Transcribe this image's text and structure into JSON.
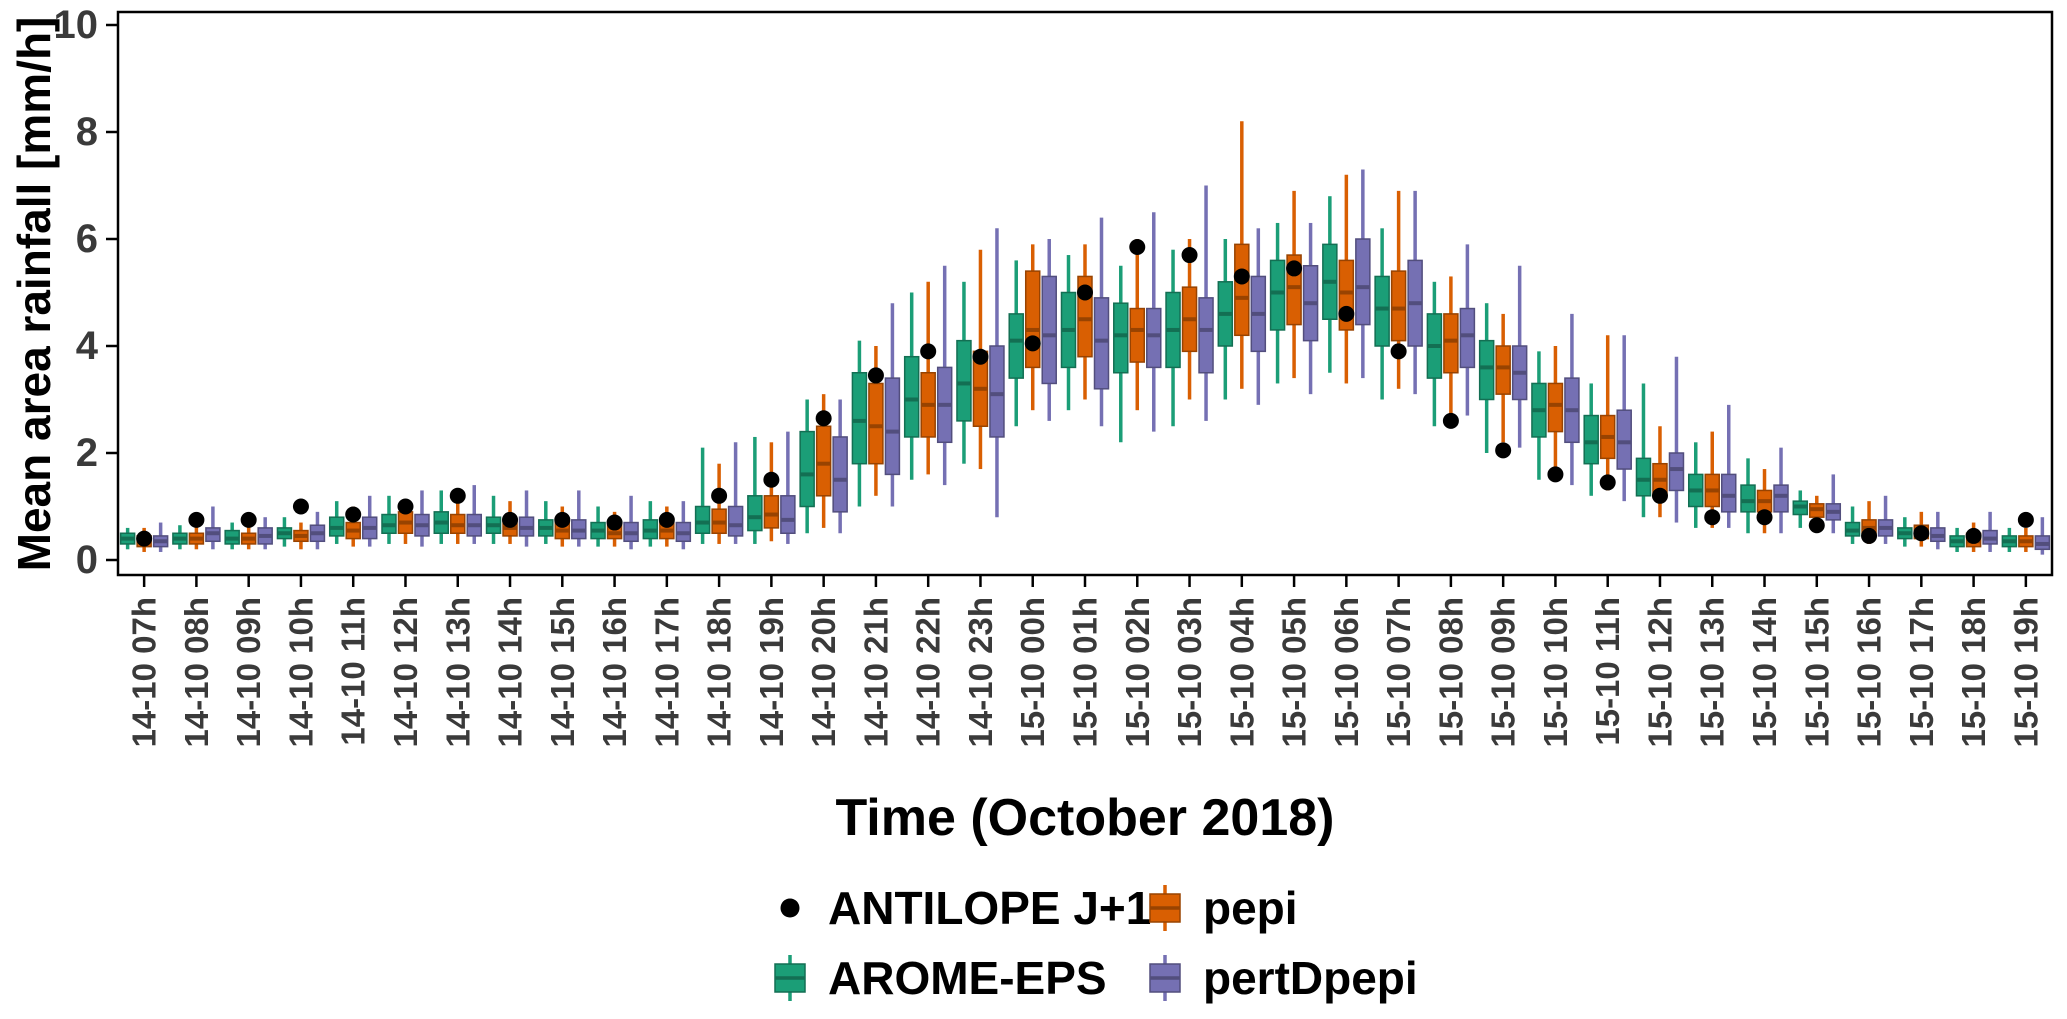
{
  "axes": {
    "y_label": "Mean area rainfall [mm/h]",
    "x_label": "Time (October 2018)",
    "y_ticks": [
      0,
      2,
      4,
      6,
      8,
      10
    ],
    "y_range": [
      0,
      10
    ]
  },
  "legend": [
    {
      "label": "ANTILOPE J+1",
      "glyph": "point",
      "color": "#000000"
    },
    {
      "label": "AROME-EPS",
      "glyph": "box",
      "color": "#1b9e77"
    },
    {
      "label": "pepi",
      "glyph": "box",
      "color": "#d95f02"
    },
    {
      "label": "pertDpepi",
      "glyph": "box",
      "color": "#7570b3"
    }
  ],
  "chart_data": {
    "type": "boxplot",
    "title": "",
    "xlabel": "Time (October 2018)",
    "ylabel": "Mean area rainfall [mm/h]",
    "ylim": [
      0,
      10
    ],
    "grid": false,
    "legend_position": "bottom",
    "categories": [
      "14-10 07h",
      "14-10 08h",
      "14-10 09h",
      "14-10 10h",
      "14-10 11h",
      "14-10 12h",
      "14-10 13h",
      "14-10 14h",
      "14-10 15h",
      "14-10 16h",
      "14-10 17h",
      "14-10 18h",
      "14-10 19h",
      "14-10 20h",
      "14-10 21h",
      "14-10 22h",
      "14-10 23h",
      "15-10 00h",
      "15-10 01h",
      "15-10 02h",
      "15-10 03h",
      "15-10 04h",
      "15-10 05h",
      "15-10 06h",
      "15-10 07h",
      "15-10 08h",
      "15-10 09h",
      "15-10 10h",
      "15-10 11h",
      "15-10 12h",
      "15-10 13h",
      "15-10 14h",
      "15-10 15h",
      "15-10 16h",
      "15-10 17h",
      "15-10 18h",
      "15-10 19h"
    ],
    "point_series": {
      "name": "ANTILOPE J+1",
      "color": "#000000",
      "values": [
        0.4,
        0.75,
        0.75,
        1.0,
        0.85,
        1.0,
        1.2,
        0.75,
        0.75,
        0.7,
        0.75,
        1.2,
        1.5,
        2.65,
        3.45,
        3.9,
        3.8,
        4.05,
        5.0,
        5.85,
        5.7,
        5.3,
        5.45,
        4.6,
        3.9,
        2.6,
        2.05,
        1.6,
        1.45,
        1.2,
        0.8,
        0.8,
        0.65,
        0.45,
        0.5,
        0.45,
        0.75
      ]
    },
    "box_format": [
      "whisker_low",
      "q1",
      "median",
      "q3",
      "whisker_high"
    ],
    "series": [
      {
        "name": "AROME-EPS",
        "color": "#1b9e77",
        "boxes": [
          [
            0.2,
            0.3,
            0.4,
            0.5,
            0.6
          ],
          [
            0.2,
            0.3,
            0.4,
            0.5,
            0.65
          ],
          [
            0.2,
            0.3,
            0.4,
            0.55,
            0.7
          ],
          [
            0.25,
            0.4,
            0.5,
            0.6,
            0.8
          ],
          [
            0.3,
            0.45,
            0.6,
            0.8,
            1.1
          ],
          [
            0.3,
            0.5,
            0.65,
            0.85,
            1.2
          ],
          [
            0.3,
            0.5,
            0.7,
            0.9,
            1.3
          ],
          [
            0.3,
            0.5,
            0.65,
            0.8,
            1.2
          ],
          [
            0.3,
            0.45,
            0.6,
            0.75,
            1.1
          ],
          [
            0.25,
            0.4,
            0.55,
            0.7,
            1.0
          ],
          [
            0.25,
            0.4,
            0.55,
            0.75,
            1.1
          ],
          [
            0.3,
            0.5,
            0.7,
            1.0,
            2.1
          ],
          [
            0.3,
            0.55,
            0.8,
            1.2,
            2.3
          ],
          [
            0.5,
            1.0,
            1.6,
            2.4,
            3.0
          ],
          [
            1.0,
            1.8,
            2.6,
            3.5,
            4.1
          ],
          [
            1.5,
            2.3,
            3.0,
            3.8,
            5.0
          ],
          [
            1.8,
            2.6,
            3.3,
            4.1,
            5.2
          ],
          [
            2.5,
            3.4,
            4.1,
            4.6,
            5.6
          ],
          [
            2.8,
            3.6,
            4.3,
            5.0,
            5.7
          ],
          [
            2.2,
            3.5,
            4.2,
            4.8,
            5.5
          ],
          [
            2.5,
            3.6,
            4.3,
            5.0,
            5.8
          ],
          [
            3.0,
            4.0,
            4.6,
            5.2,
            6.0
          ],
          [
            3.3,
            4.3,
            5.0,
            5.6,
            6.3
          ],
          [
            3.5,
            4.5,
            5.2,
            5.9,
            6.8
          ],
          [
            3.0,
            4.0,
            4.7,
            5.3,
            6.2
          ],
          [
            2.5,
            3.4,
            4.0,
            4.6,
            5.2
          ],
          [
            2.0,
            3.0,
            3.6,
            4.1,
            4.8
          ],
          [
            1.5,
            2.3,
            2.8,
            3.3,
            3.9
          ],
          [
            1.2,
            1.8,
            2.2,
            2.7,
            3.3
          ],
          [
            0.8,
            1.2,
            1.5,
            1.9,
            3.3
          ],
          [
            0.6,
            1.0,
            1.3,
            1.6,
            2.2
          ],
          [
            0.5,
            0.9,
            1.1,
            1.4,
            1.9
          ],
          [
            0.6,
            0.85,
            1.0,
            1.1,
            1.3
          ],
          [
            0.3,
            0.45,
            0.55,
            0.7,
            1.0
          ],
          [
            0.25,
            0.4,
            0.5,
            0.6,
            0.8
          ],
          [
            0.15,
            0.25,
            0.35,
            0.45,
            0.6
          ],
          [
            0.15,
            0.25,
            0.35,
            0.45,
            0.6
          ]
        ]
      },
      {
        "name": "pepi",
        "color": "#d95f02",
        "boxes": [
          [
            0.15,
            0.25,
            0.35,
            0.45,
            0.6
          ],
          [
            0.2,
            0.3,
            0.4,
            0.5,
            0.7
          ],
          [
            0.2,
            0.3,
            0.4,
            0.5,
            0.65
          ],
          [
            0.2,
            0.35,
            0.45,
            0.55,
            0.7
          ],
          [
            0.25,
            0.4,
            0.55,
            0.7,
            1.0
          ],
          [
            0.3,
            0.5,
            0.7,
            0.9,
            1.1
          ],
          [
            0.3,
            0.5,
            0.65,
            0.85,
            1.2
          ],
          [
            0.3,
            0.45,
            0.6,
            0.75,
            1.1
          ],
          [
            0.25,
            0.4,
            0.55,
            0.7,
            1.0
          ],
          [
            0.25,
            0.4,
            0.5,
            0.65,
            0.9
          ],
          [
            0.25,
            0.4,
            0.55,
            0.7,
            1.0
          ],
          [
            0.3,
            0.5,
            0.7,
            0.95,
            1.8
          ],
          [
            0.35,
            0.6,
            0.85,
            1.2,
            2.2
          ],
          [
            0.6,
            1.2,
            1.8,
            2.5,
            3.1
          ],
          [
            1.2,
            1.8,
            2.5,
            3.3,
            4.0
          ],
          [
            1.6,
            2.3,
            2.9,
            3.5,
            5.2
          ],
          [
            1.7,
            2.5,
            3.2,
            3.9,
            5.8
          ],
          [
            2.8,
            3.6,
            4.3,
            5.4,
            5.9
          ],
          [
            3.0,
            3.8,
            4.5,
            5.3,
            5.9
          ],
          [
            2.8,
            3.7,
            4.3,
            4.7,
            6.0
          ],
          [
            3.0,
            3.9,
            4.5,
            5.1,
            6.0
          ],
          [
            3.2,
            4.2,
            4.9,
            5.9,
            8.2
          ],
          [
            3.4,
            4.4,
            5.1,
            5.7,
            6.9
          ],
          [
            3.3,
            4.3,
            5.0,
            5.6,
            7.2
          ],
          [
            3.2,
            4.1,
            4.7,
            5.4,
            6.9
          ],
          [
            2.6,
            3.5,
            4.1,
            4.6,
            5.3
          ],
          [
            2.2,
            3.1,
            3.6,
            4.0,
            4.6
          ],
          [
            1.6,
            2.4,
            2.9,
            3.3,
            4.0
          ],
          [
            1.3,
            1.9,
            2.3,
            2.7,
            4.2
          ],
          [
            0.8,
            1.2,
            1.5,
            1.8,
            2.5
          ],
          [
            0.6,
            1.0,
            1.3,
            1.6,
            2.4
          ],
          [
            0.5,
            0.9,
            1.1,
            1.3,
            1.7
          ],
          [
            0.6,
            0.8,
            0.95,
            1.05,
            1.2
          ],
          [
            0.3,
            0.5,
            0.6,
            0.75,
            1.1
          ],
          [
            0.25,
            0.4,
            0.5,
            0.65,
            0.9
          ],
          [
            0.15,
            0.25,
            0.35,
            0.5,
            0.7
          ],
          [
            0.15,
            0.25,
            0.35,
            0.45,
            0.6
          ]
        ]
      },
      {
        "name": "pertDpepi",
        "color": "#7570b3",
        "boxes": [
          [
            0.15,
            0.25,
            0.35,
            0.45,
            0.7
          ],
          [
            0.2,
            0.35,
            0.5,
            0.6,
            1.0
          ],
          [
            0.2,
            0.3,
            0.45,
            0.6,
            0.8
          ],
          [
            0.2,
            0.35,
            0.5,
            0.65,
            0.9
          ],
          [
            0.25,
            0.4,
            0.6,
            0.8,
            1.2
          ],
          [
            0.25,
            0.45,
            0.65,
            0.85,
            1.3
          ],
          [
            0.3,
            0.45,
            0.65,
            0.85,
            1.4
          ],
          [
            0.25,
            0.45,
            0.6,
            0.8,
            1.3
          ],
          [
            0.25,
            0.4,
            0.55,
            0.75,
            1.3
          ],
          [
            0.2,
            0.35,
            0.5,
            0.7,
            1.2
          ],
          [
            0.2,
            0.35,
            0.5,
            0.7,
            1.1
          ],
          [
            0.3,
            0.45,
            0.65,
            1.0,
            2.2
          ],
          [
            0.3,
            0.5,
            0.75,
            1.2,
            2.4
          ],
          [
            0.5,
            0.9,
            1.5,
            2.3,
            3.0
          ],
          [
            1.0,
            1.6,
            2.4,
            3.4,
            4.8
          ],
          [
            1.4,
            2.2,
            2.9,
            3.6,
            5.5
          ],
          [
            0.8,
            2.3,
            3.1,
            4.0,
            6.2
          ],
          [
            2.6,
            3.3,
            4.2,
            5.3,
            6.0
          ],
          [
            2.5,
            3.2,
            4.1,
            4.9,
            6.4
          ],
          [
            2.4,
            3.6,
            4.2,
            4.7,
            6.5
          ],
          [
            2.6,
            3.5,
            4.3,
            4.9,
            7.0
          ],
          [
            2.9,
            3.9,
            4.6,
            5.3,
            6.2
          ],
          [
            3.1,
            4.1,
            4.8,
            5.5,
            6.3
          ],
          [
            3.4,
            4.4,
            5.1,
            6.0,
            7.3
          ],
          [
            3.1,
            4.0,
            4.8,
            5.6,
            6.9
          ],
          [
            2.7,
            3.6,
            4.2,
            4.7,
            5.9
          ],
          [
            2.1,
            3.0,
            3.5,
            4.0,
            5.5
          ],
          [
            1.4,
            2.2,
            2.8,
            3.4,
            4.6
          ],
          [
            1.1,
            1.7,
            2.2,
            2.8,
            4.2
          ],
          [
            0.7,
            1.3,
            1.7,
            2.0,
            3.8
          ],
          [
            0.6,
            0.9,
            1.2,
            1.6,
            2.9
          ],
          [
            0.5,
            0.9,
            1.2,
            1.4,
            2.1
          ],
          [
            0.5,
            0.75,
            0.9,
            1.05,
            1.6
          ],
          [
            0.3,
            0.45,
            0.6,
            0.75,
            1.2
          ],
          [
            0.2,
            0.35,
            0.45,
            0.6,
            0.9
          ],
          [
            0.15,
            0.3,
            0.4,
            0.55,
            0.9
          ],
          [
            0.1,
            0.2,
            0.3,
            0.45,
            0.8
          ]
        ]
      }
    ]
  }
}
